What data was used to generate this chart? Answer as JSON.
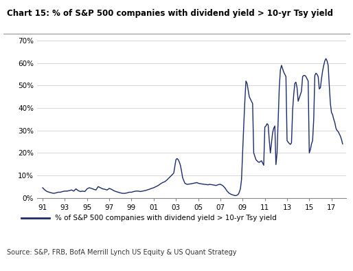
{
  "title": "Chart 15: % of S&P 500 companies with dividend yield > 10-yr Tsy yield",
  "legend_label": "% of S&P 500 companies with dividend yield > 10-yr Tsy yield",
  "source_text": "Source: S&P, FRB, BofA Merrill Lynch US Equity & US Quant Strategy",
  "line_color": "#1b2a6b",
  "background_color": "#ffffff",
  "grid_color": "#c8c8c8",
  "ylim": [
    0,
    0.7
  ],
  "yticks": [
    0.0,
    0.1,
    0.2,
    0.3,
    0.4,
    0.5,
    0.6,
    0.7
  ],
  "ytick_labels": [
    "0%",
    "10%",
    "20%",
    "30%",
    "40%",
    "50%",
    "60%",
    "70%"
  ],
  "xtick_labels": [
    "91",
    "93",
    "95",
    "97",
    "99",
    "01",
    "03",
    "05",
    "07",
    "09",
    "11",
    "13",
    "15",
    "17"
  ],
  "xlim": [
    1990.5,
    2018.3
  ],
  "x_data": [
    1991.0,
    1991.2,
    1991.4,
    1991.6,
    1991.8,
    1992.0,
    1992.2,
    1992.4,
    1992.6,
    1992.8,
    1993.0,
    1993.2,
    1993.4,
    1993.6,
    1993.8,
    1994.0,
    1994.2,
    1994.4,
    1994.6,
    1994.8,
    1995.0,
    1995.2,
    1995.4,
    1995.6,
    1995.8,
    1996.0,
    1996.2,
    1996.4,
    1996.6,
    1996.8,
    1997.0,
    1997.2,
    1997.4,
    1997.6,
    1997.8,
    1998.0,
    1998.2,
    1998.4,
    1998.6,
    1998.8,
    1999.0,
    1999.2,
    1999.4,
    1999.6,
    1999.8,
    2000.0,
    2000.2,
    2000.4,
    2000.6,
    2000.8,
    2001.0,
    2001.2,
    2001.4,
    2001.6,
    2001.8,
    2002.0,
    2002.2,
    2002.4,
    2002.6,
    2002.8,
    2003.0,
    2003.1,
    2003.2,
    2003.3,
    2003.4,
    2003.5,
    2003.6,
    2003.8,
    2004.0,
    2004.3,
    2004.6,
    2004.9,
    2005.0,
    2005.3,
    2005.6,
    2005.9,
    2006.0,
    2006.3,
    2006.6,
    2006.9,
    2007.0,
    2007.2,
    2007.4,
    2007.6,
    2007.8,
    2008.0,
    2008.1,
    2008.2,
    2008.3,
    2008.4,
    2008.5,
    2008.6,
    2008.7,
    2008.8,
    2008.9,
    2009.0,
    2009.1,
    2009.2,
    2009.3,
    2009.4,
    2009.5,
    2009.6,
    2009.7,
    2009.8,
    2009.9,
    2010.0,
    2010.1,
    2010.2,
    2010.3,
    2010.4,
    2010.5,
    2010.6,
    2010.7,
    2010.8,
    2010.9,
    2011.0,
    2011.1,
    2011.2,
    2011.3,
    2011.4,
    2011.5,
    2011.6,
    2011.7,
    2011.8,
    2011.9,
    2012.0,
    2012.1,
    2012.2,
    2012.3,
    2012.4,
    2012.5,
    2012.6,
    2012.7,
    2012.8,
    2012.9,
    2013.0,
    2013.1,
    2013.2,
    2013.3,
    2013.4,
    2013.5,
    2013.6,
    2013.7,
    2013.8,
    2013.9,
    2014.0,
    2014.1,
    2014.2,
    2014.3,
    2014.4,
    2014.5,
    2014.6,
    2014.7,
    2014.8,
    2014.9,
    2015.0,
    2015.1,
    2015.2,
    2015.3,
    2015.4,
    2015.5,
    2015.6,
    2015.7,
    2015.8,
    2015.9,
    2016.0,
    2016.1,
    2016.2,
    2016.3,
    2016.4,
    2016.5,
    2016.6,
    2016.7,
    2016.8,
    2016.9,
    2017.0,
    2017.1,
    2017.2,
    2017.3,
    2017.4,
    2017.5,
    2017.6,
    2017.7,
    2017.8,
    2017.9,
    2018.0
  ],
  "y_data": [
    0.045,
    0.035,
    0.028,
    0.025,
    0.022,
    0.02,
    0.022,
    0.025,
    0.025,
    0.028,
    0.03,
    0.03,
    0.032,
    0.035,
    0.03,
    0.04,
    0.032,
    0.028,
    0.03,
    0.028,
    0.04,
    0.045,
    0.042,
    0.038,
    0.035,
    0.05,
    0.045,
    0.04,
    0.038,
    0.035,
    0.042,
    0.038,
    0.032,
    0.028,
    0.025,
    0.022,
    0.02,
    0.02,
    0.022,
    0.025,
    0.025,
    0.028,
    0.03,
    0.03,
    0.028,
    0.03,
    0.032,
    0.035,
    0.038,
    0.042,
    0.045,
    0.05,
    0.055,
    0.062,
    0.068,
    0.072,
    0.08,
    0.09,
    0.1,
    0.11,
    0.17,
    0.175,
    0.17,
    0.16,
    0.145,
    0.12,
    0.09,
    0.065,
    0.06,
    0.062,
    0.065,
    0.068,
    0.065,
    0.062,
    0.06,
    0.058,
    0.06,
    0.058,
    0.055,
    0.06,
    0.06,
    0.055,
    0.045,
    0.03,
    0.02,
    0.015,
    0.013,
    0.012,
    0.01,
    0.01,
    0.012,
    0.015,
    0.025,
    0.04,
    0.08,
    0.2,
    0.32,
    0.43,
    0.52,
    0.51,
    0.48,
    0.45,
    0.44,
    0.43,
    0.42,
    0.2,
    0.185,
    0.17,
    0.165,
    0.16,
    0.158,
    0.162,
    0.165,
    0.155,
    0.145,
    0.315,
    0.32,
    0.33,
    0.325,
    0.255,
    0.2,
    0.245,
    0.29,
    0.31,
    0.32,
    0.148,
    0.2,
    0.35,
    0.49,
    0.57,
    0.59,
    0.575,
    0.56,
    0.55,
    0.54,
    0.255,
    0.248,
    0.242,
    0.238,
    0.245,
    0.39,
    0.46,
    0.51,
    0.515,
    0.49,
    0.43,
    0.445,
    0.46,
    0.475,
    0.54,
    0.545,
    0.545,
    0.54,
    0.53,
    0.52,
    0.2,
    0.215,
    0.24,
    0.255,
    0.35,
    0.545,
    0.555,
    0.55,
    0.54,
    0.485,
    0.49,
    0.53,
    0.565,
    0.59,
    0.61,
    0.62,
    0.61,
    0.59,
    0.5,
    0.42,
    0.38,
    0.37,
    0.35,
    0.335,
    0.31,
    0.3,
    0.295,
    0.285,
    0.275,
    0.26,
    0.24
  ]
}
